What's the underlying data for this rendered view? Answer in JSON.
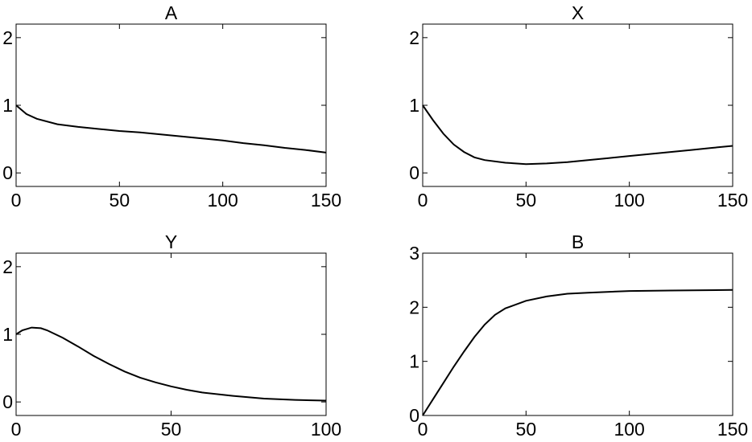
{
  "chart_data": [
    {
      "type": "line",
      "title": "A",
      "color": "#000000",
      "x": [
        0,
        5,
        10,
        20,
        30,
        40,
        50,
        60,
        70,
        80,
        90,
        100,
        110,
        120,
        130,
        140,
        150
      ],
      "values": [
        1.0,
        0.87,
        0.8,
        0.72,
        0.68,
        0.65,
        0.62,
        0.6,
        0.57,
        0.54,
        0.51,
        0.48,
        0.44,
        0.41,
        0.37,
        0.34,
        0.3
      ],
      "xlim": [
        0,
        150
      ],
      "xticks": [
        0,
        50,
        100,
        150
      ],
      "ylim": [
        -0.2,
        2.2
      ],
      "yticks": [
        0,
        1,
        2
      ]
    },
    {
      "type": "line",
      "title": "X",
      "color": "#000000",
      "x": [
        0,
        5,
        10,
        15,
        20,
        25,
        30,
        40,
        50,
        60,
        70,
        80,
        90,
        100,
        110,
        120,
        130,
        140,
        150
      ],
      "values": [
        1.0,
        0.78,
        0.58,
        0.42,
        0.31,
        0.23,
        0.19,
        0.15,
        0.13,
        0.14,
        0.16,
        0.19,
        0.22,
        0.25,
        0.28,
        0.31,
        0.34,
        0.37,
        0.4
      ],
      "xlim": [
        0,
        150
      ],
      "xticks": [
        0,
        50,
        100,
        150
      ],
      "ylim": [
        -0.2,
        2.2
      ],
      "yticks": [
        0,
        1,
        2
      ]
    },
    {
      "type": "line",
      "title": "Y",
      "color": "#000000",
      "x": [
        0,
        2,
        5,
        8,
        10,
        15,
        20,
        25,
        30,
        35,
        40,
        45,
        50,
        55,
        60,
        70,
        80,
        90,
        100
      ],
      "values": [
        1.0,
        1.06,
        1.1,
        1.09,
        1.06,
        0.95,
        0.82,
        0.68,
        0.56,
        0.45,
        0.36,
        0.29,
        0.23,
        0.18,
        0.14,
        0.09,
        0.05,
        0.03,
        0.02
      ],
      "xlim": [
        0,
        100
      ],
      "xticks": [
        0,
        50,
        100
      ],
      "ylim": [
        -0.2,
        2.2
      ],
      "yticks": [
        0,
        1,
        2
      ]
    },
    {
      "type": "line",
      "title": "B",
      "color": "#000000",
      "x": [
        0,
        5,
        10,
        15,
        20,
        25,
        30,
        35,
        40,
        50,
        60,
        70,
        80,
        100,
        120,
        150
      ],
      "values": [
        0,
        0.3,
        0.6,
        0.9,
        1.18,
        1.45,
        1.68,
        1.86,
        1.98,
        2.12,
        2.2,
        2.25,
        2.27,
        2.3,
        2.31,
        2.32
      ],
      "xlim": [
        0,
        150
      ],
      "xticks": [
        0,
        50,
        100,
        150
      ],
      "ylim": [
        0,
        3
      ],
      "yticks": [
        0,
        1,
        2,
        3
      ]
    }
  ]
}
